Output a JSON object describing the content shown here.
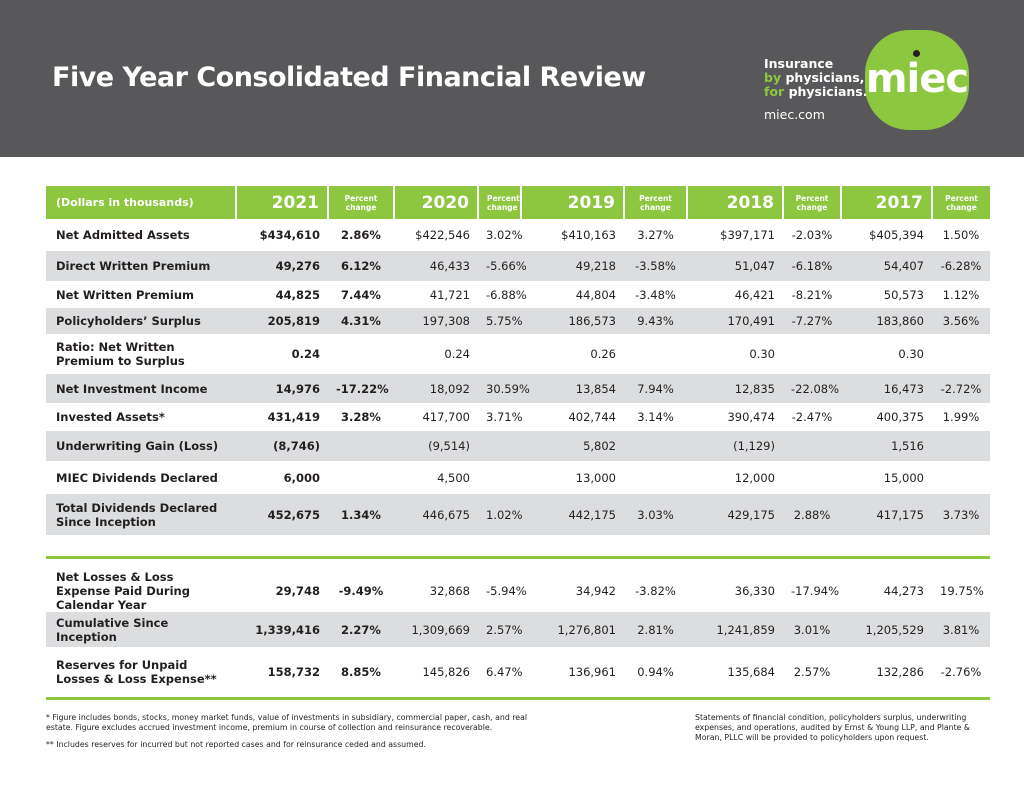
{
  "header": {
    "title": "Five Year Consolidated Financial Review",
    "tagline_line1": "Insurance",
    "tagline_line2_accent": "by",
    "tagline_line2": "physicians,",
    "tagline_line3_accent": "for",
    "tagline_line3": "physicians.",
    "website": "miec.com",
    "logo_text": "miec"
  },
  "colors": {
    "header_bg": "#58585a",
    "accent_green": "#8dc63f",
    "row_gray": "#dcddde"
  },
  "table": {
    "corner_label": "(Dollars in thousands)",
    "years": [
      "2021",
      "2020",
      "2019",
      "2018",
      "2017"
    ],
    "percent_label_1": "Percent",
    "percent_label_2": "change",
    "rows": [
      {
        "label": "Net Admitted Assets",
        "values": [
          "$434,610",
          "2.86%",
          "$422,546",
          "3.02%",
          "$410,163",
          "3.27%",
          "$397,171",
          "-2.03%",
          "$405,394",
          "1.50%"
        ]
      },
      {
        "label": "Direct Written Premium",
        "values": [
          "49,276",
          "6.12%",
          "46,433",
          "-5.66%",
          "49,218",
          "-3.58%",
          "51,047",
          "-6.18%",
          "54,407",
          "-6.28%"
        ]
      },
      {
        "label": "Net Written Premium",
        "values": [
          "44,825",
          "7.44%",
          "41,721",
          "-6.88%",
          "44,804",
          "-3.48%",
          "46,421",
          "-8.21%",
          "50,573",
          "1.12%"
        ]
      },
      {
        "label": "Policyholders’ Surplus",
        "values": [
          "205,819",
          "4.31%",
          "197,308",
          "5.75%",
          "186,573",
          "9.43%",
          "170,491",
          "-7.27%",
          "183,860",
          "3.56%"
        ]
      },
      {
        "label": "Ratio: Net Written Premium to Surplus",
        "values": [
          "0.24",
          "",
          "0.24",
          "",
          "0.26",
          "",
          "0.30",
          "",
          "0.30",
          ""
        ]
      },
      {
        "label": "Net Investment Income",
        "values": [
          "14,976",
          "-17.22%",
          "18,092",
          "30.59%",
          "13,854",
          "7.94%",
          "12,835",
          "-22.08%",
          "16,473",
          "-2.72%"
        ]
      },
      {
        "label": "Invested Assets*",
        "values": [
          "431,419",
          "3.28%",
          "417,700",
          "3.71%",
          "402,744",
          "3.14%",
          "390,474",
          "-2.47%",
          "400,375",
          "1.99%"
        ]
      },
      {
        "label": "Underwriting Gain (Loss)",
        "values": [
          "(8,746)",
          "",
          "(9,514)",
          "",
          "5,802",
          "",
          "(1,129)",
          "",
          "1,516",
          ""
        ]
      },
      {
        "label": "MIEC Dividends Declared",
        "values": [
          "6,000",
          "",
          "4,500",
          "",
          "13,000",
          "",
          "12,000",
          "",
          "15,000",
          ""
        ]
      },
      {
        "label": "Total Dividends Declared Since Inception",
        "values": [
          "452,675",
          "1.34%",
          "446,675",
          "1.02%",
          "442,175",
          "3.03%",
          "429,175",
          "2.88%",
          "417,175",
          "3.73%"
        ]
      }
    ],
    "loss_rows": [
      {
        "label": "Net Losses & Loss Expense Paid During Calendar Year",
        "values": [
          "29,748",
          "-9.49%",
          "32,868",
          "-5.94%",
          "34,942",
          "-3.82%",
          "36,330",
          "-17.94%",
          "44,273",
          "19.75%"
        ]
      },
      {
        "label": "Cumulative Since Inception",
        "values": [
          "1,339,416",
          "2.27%",
          "1,309,669",
          "2.57%",
          "1,276,801",
          "2.81%",
          "1,241,859",
          "3.01%",
          "1,205,529",
          "3.81%"
        ]
      },
      {
        "label": "Reserves for Unpaid Losses & Loss Expense**",
        "values": [
          "158,732",
          "8.85%",
          "145,826",
          "6.47%",
          "136,961",
          "0.94%",
          "135,684",
          "2.57%",
          "132,286",
          "-2.76%"
        ]
      }
    ]
  },
  "footnotes": {
    "note1": "* Figure includes bonds, stocks, money market funds, value of investments in subsidiary, commercial paper, cash, and real estate. Figure excludes accrued investment income, premium in course of collection and reinsurance recoverable.",
    "note2": "** Includes reserves for incurred but not reported cases and for reinsurance ceded and assumed.",
    "audit": "Statements of financial condition, policyholders surplus, underwriting expenses, and operations, audited by Ernst & Young LLP, and Plante & Moran, PLLC will be provided to policyholders upon request."
  }
}
